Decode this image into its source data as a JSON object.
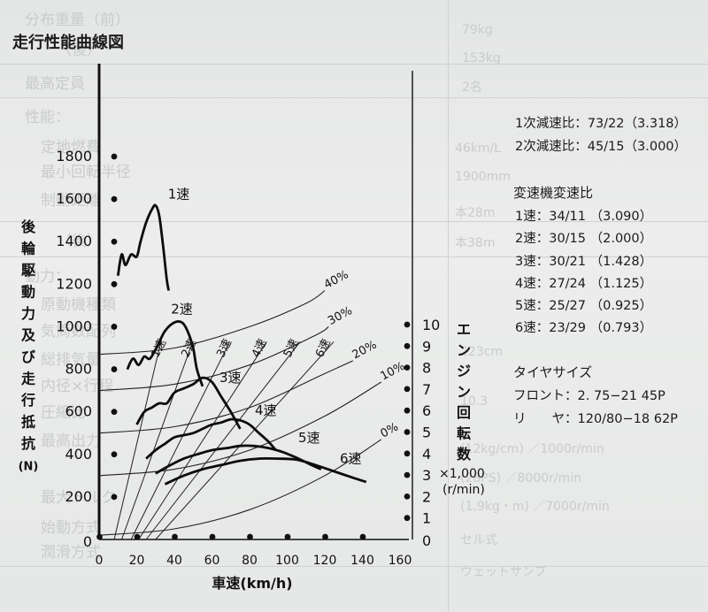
{
  "background_text": {
    "rows": [
      "分布重量（前）",
      "（後）",
      "最高定員",
      "性能：",
      "定地燃費",
      "最小回転半径",
      "制動距離",
      "（後）",
      "動力：",
      "原動機種類",
      "気筒数配列",
      "総排気量",
      "内径×行程",
      "圧縮比",
      "最高出力",
      "最大トルク",
      "始動方式",
      "潤滑方式"
    ],
    "values": [
      "79kg",
      "153kg",
      "2名",
      "46km/L",
      "1900mm",
      "本28m",
      "本38m",
      "223cm",
      "10.3",
      "(12kg/cm) ／1000r/min",
      "(28PS) ／8000r/min",
      "(1.9kg・m) ／7000r/min",
      "セル式",
      "ウェットサンプ"
    ]
  },
  "chart_title": "走行性能曲線図",
  "reduction": {
    "primary": "1次減速比：73/22（3.318）",
    "secondary": "2次減速比：45/15（3.000）"
  },
  "gear_ratios": {
    "title": "変速機変速比",
    "items": [
      "1速：34/11 （3.090）",
      "2速：30/15 （2.000）",
      "3速：30/21 （1.428）",
      "4速：27/24 （1.125）",
      "5速：25/27 （0.925）",
      "6速：23/29 （0.793）"
    ]
  },
  "tire": {
    "title": "タイヤサイズ",
    "front": "フロント：2. 75−21 45P",
    "rear": "リ　　ヤ：120/80−18 62P"
  },
  "chart_data": {
    "type": "line",
    "title": "走行性能曲線図",
    "xlabel": "車速(km/h)",
    "xlim": [
      0,
      160
    ],
    "x_ticks": [
      0,
      20,
      40,
      60,
      80,
      100,
      120,
      140,
      160
    ],
    "ylabel_left": [
      "後",
      "輪",
      "駆",
      "動",
      "力",
      "及",
      "び",
      "走",
      "行",
      "抵",
      "抗",
      "(N)"
    ],
    "ylim_left": [
      0,
      1800
    ],
    "y_ticks_left": [
      200,
      400,
      600,
      800,
      1000,
      1200,
      1400,
      1600,
      1800
    ],
    "ylabel_right": [
      "エ",
      "ン",
      "ジ",
      "ン",
      "回",
      "転",
      "数"
    ],
    "ylabel_right_unit": [
      "×1,000",
      "(r/min)"
    ],
    "ylim_right": [
      0,
      10
    ],
    "y_ticks_right": [
      1,
      2,
      3,
      4,
      5,
      6,
      7,
      8,
      9,
      10
    ],
    "grid": false,
    "drive_force": [
      {
        "name": "1速",
        "points": [
          [
            10,
            1240
          ],
          [
            12,
            1340
          ],
          [
            14,
            1290
          ],
          [
            17,
            1340
          ],
          [
            20,
            1330
          ],
          [
            22,
            1400
          ],
          [
            25,
            1490
          ],
          [
            28,
            1550
          ],
          [
            30,
            1570
          ],
          [
            32,
            1520
          ],
          [
            34,
            1380
          ],
          [
            36,
            1220
          ],
          [
            37,
            1170
          ]
        ]
      },
      {
        "name": "2速",
        "points": [
          [
            15,
            800
          ],
          [
            18,
            850
          ],
          [
            21,
            820
          ],
          [
            24,
            860
          ],
          [
            27,
            850
          ],
          [
            31,
            910
          ],
          [
            35,
            980
          ],
          [
            40,
            1020
          ],
          [
            44,
            1020
          ],
          [
            47,
            980
          ],
          [
            50,
            900
          ],
          [
            52,
            800
          ],
          [
            55,
            720
          ]
        ]
      },
      {
        "name": "3速",
        "points": [
          [
            20,
            540
          ],
          [
            24,
            600
          ],
          [
            28,
            620
          ],
          [
            32,
            640
          ],
          [
            36,
            640
          ],
          [
            40,
            690
          ],
          [
            45,
            710
          ],
          [
            50,
            730
          ],
          [
            55,
            760
          ],
          [
            60,
            740
          ],
          [
            65,
            670
          ],
          [
            70,
            600
          ],
          [
            75,
            520
          ]
        ]
      },
      {
        "name": "4速",
        "points": [
          [
            25,
            380
          ],
          [
            30,
            420
          ],
          [
            35,
            450
          ],
          [
            40,
            480
          ],
          [
            45,
            490
          ],
          [
            50,
            500
          ],
          [
            55,
            520
          ],
          [
            60,
            540
          ],
          [
            65,
            550
          ],
          [
            70,
            565
          ],
          [
            75,
            560
          ],
          [
            80,
            540
          ],
          [
            85,
            500
          ],
          [
            90,
            460
          ],
          [
            94,
            420
          ]
        ]
      },
      {
        "name": "5速",
        "points": [
          [
            30,
            310
          ],
          [
            38,
            350
          ],
          [
            45,
            380
          ],
          [
            52,
            400
          ],
          [
            60,
            420
          ],
          [
            68,
            430
          ],
          [
            75,
            440
          ],
          [
            82,
            440
          ],
          [
            90,
            430
          ],
          [
            98,
            410
          ],
          [
            106,
            380
          ],
          [
            113,
            350
          ],
          [
            118,
            330
          ]
        ]
      },
      {
        "name": "6速",
        "points": [
          [
            35,
            260
          ],
          [
            45,
            300
          ],
          [
            55,
            330
          ],
          [
            65,
            350
          ],
          [
            75,
            370
          ],
          [
            85,
            380
          ],
          [
            95,
            380
          ],
          [
            105,
            375
          ],
          [
            115,
            350
          ],
          [
            125,
            320
          ],
          [
            135,
            290
          ],
          [
            142,
            270
          ]
        ]
      }
    ],
    "resistance": [
      {
        "name": "0%",
        "points": [
          [
            0,
            20
          ],
          [
            40,
            50
          ],
          [
            80,
            140
          ],
          [
            120,
            300
          ],
          [
            150,
            470
          ]
        ]
      },
      {
        "name": "10%",
        "points": [
          [
            0,
            300
          ],
          [
            40,
            330
          ],
          [
            80,
            420
          ],
          [
            120,
            580
          ],
          [
            150,
            740
          ]
        ]
      },
      {
        "name": "20%",
        "points": [
          [
            0,
            500
          ],
          [
            40,
            530
          ],
          [
            80,
            620
          ],
          [
            120,
            780
          ],
          [
            135,
            840
          ]
        ]
      },
      {
        "name": "30%",
        "points": [
          [
            0,
            700
          ],
          [
            40,
            730
          ],
          [
            80,
            820
          ],
          [
            115,
            960
          ],
          [
            122,
            1000
          ]
        ]
      },
      {
        "name": "40%",
        "points": [
          [
            0,
            870
          ],
          [
            40,
            900
          ],
          [
            80,
            1000
          ],
          [
            110,
            1110
          ],
          [
            120,
            1170
          ]
        ]
      }
    ],
    "speed_lines": [
      {
        "name": "1速",
        "points": [
          [
            8,
            0
          ],
          [
            35,
            10
          ]
        ]
      },
      {
        "name": "2速",
        "points": [
          [
            12,
            0
          ],
          [
            53,
            10
          ]
        ]
      },
      {
        "name": "3速",
        "points": [
          [
            17,
            0
          ],
          [
            74,
            10
          ]
        ]
      },
      {
        "name": "4速",
        "points": [
          [
            21,
            0
          ],
          [
            95,
            10
          ]
        ]
      },
      {
        "name": "5速",
        "points": [
          [
            25,
            0
          ],
          [
            114,
            10
          ]
        ]
      },
      {
        "name": "6速",
        "points": [
          [
            30,
            0
          ],
          [
            133,
            10
          ]
        ]
      }
    ],
    "marker_left": {
      "x": 8,
      "values": [
        200,
        400,
        600,
        800,
        1000,
        1200,
        1400,
        1600,
        1800
      ]
    },
    "marker_right": {
      "x": 165,
      "values": [
        1,
        2,
        3,
        4,
        5,
        6,
        7,
        8,
        9,
        10
      ]
    },
    "marker_bottom": {
      "y": 0,
      "x_values": [
        20,
        40,
        60,
        80,
        100,
        120,
        140,
        160
      ]
    }
  }
}
